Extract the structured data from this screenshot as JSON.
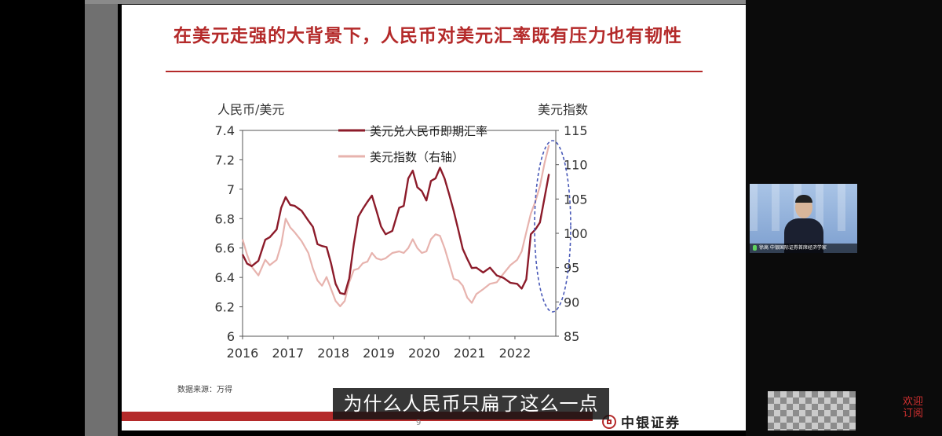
{
  "slide": {
    "title": "在美元走强的大背景下，人民币对美元汇率既有压力也有韧性",
    "source": "数据来源：万得",
    "page_number": "9",
    "logo_text": "中银证券",
    "logo_icon": "boc-logo-icon"
  },
  "subtitle": "为什么人民币只扁了这么一点",
  "webcam": {
    "name_label": "徐高  中银国际证券首席经济学家"
  },
  "subscribe_label": "欢迎订阅",
  "colors": {
    "brand_red": "#b42a2a",
    "series_cny": "#8c1b2a",
    "series_dxy": "#e7b3ae",
    "ellipse": "#4a5ab8"
  },
  "chart_data": {
    "type": "line",
    "left_axis_label": "人民币/美元",
    "right_axis_label": "美元指数",
    "x_ticks": [
      "2016",
      "2017",
      "2018",
      "2019",
      "2020",
      "2021",
      "2022"
    ],
    "xlim": [
      2016,
      2022.9
    ],
    "ylim_left": [
      6,
      7.4
    ],
    "yticks_left": [
      "6",
      "6.2",
      "6.4",
      "6.6",
      "6.8",
      "7",
      "7.2",
      "7.4"
    ],
    "ylim_right": [
      85,
      115
    ],
    "yticks_right": [
      "85",
      "90",
      "95",
      "100",
      "105",
      "110",
      "115"
    ],
    "series": [
      {
        "name": "美元兑人民币即期汇率",
        "axis": "left",
        "x": [
          2016.0,
          2016.1,
          2016.2,
          2016.35,
          2016.5,
          2016.6,
          2016.75,
          2016.85,
          2016.95,
          2017.05,
          2017.15,
          2017.3,
          2017.45,
          2017.55,
          2017.65,
          2017.75,
          2017.85,
          2017.95,
          2018.05,
          2018.15,
          2018.25,
          2018.35,
          2018.45,
          2018.55,
          2018.65,
          2018.75,
          2018.85,
          2018.95,
          2019.05,
          2019.15,
          2019.3,
          2019.45,
          2019.55,
          2019.65,
          2019.75,
          2019.85,
          2019.95,
          2020.05,
          2020.15,
          2020.25,
          2020.35,
          2020.45,
          2020.55,
          2020.65,
          2020.75,
          2020.85,
          2020.95,
          2021.05,
          2021.15,
          2021.3,
          2021.45,
          2021.6,
          2021.75,
          2021.9,
          2022.05,
          2022.15,
          2022.25,
          2022.35,
          2022.45,
          2022.55,
          2022.65,
          2022.75
        ],
        "values": [
          6.55,
          6.5,
          6.47,
          6.52,
          6.65,
          6.68,
          6.72,
          6.88,
          6.94,
          6.9,
          6.88,
          6.86,
          6.78,
          6.75,
          6.62,
          6.62,
          6.6,
          6.5,
          6.35,
          6.3,
          6.28,
          6.4,
          6.62,
          6.82,
          6.86,
          6.92,
          6.95,
          6.86,
          6.74,
          6.7,
          6.71,
          6.88,
          6.88,
          7.08,
          7.12,
          7.02,
          6.98,
          6.93,
          7.05,
          7.08,
          7.14,
          7.08,
          6.96,
          6.86,
          6.72,
          6.6,
          6.52,
          6.47,
          6.46,
          6.44,
          6.46,
          6.42,
          6.39,
          6.37,
          6.35,
          6.33,
          6.38,
          6.7,
          6.72,
          6.78,
          6.93,
          7.11
        ]
      },
      {
        "name": "美元指数（右轴）",
        "axis": "right",
        "x": [
          2016.0,
          2016.1,
          2016.2,
          2016.35,
          2016.5,
          2016.6,
          2016.75,
          2016.85,
          2016.95,
          2017.05,
          2017.15,
          2017.3,
          2017.45,
          2017.55,
          2017.65,
          2017.75,
          2017.85,
          2017.95,
          2018.05,
          2018.15,
          2018.25,
          2018.35,
          2018.45,
          2018.55,
          2018.65,
          2018.75,
          2018.85,
          2018.95,
          2019.05,
          2019.15,
          2019.3,
          2019.45,
          2019.55,
          2019.65,
          2019.75,
          2019.85,
          2019.95,
          2020.05,
          2020.15,
          2020.25,
          2020.35,
          2020.45,
          2020.55,
          2020.65,
          2020.75,
          2020.85,
          2020.95,
          2021.05,
          2021.15,
          2021.3,
          2021.45,
          2021.6,
          2021.75,
          2021.9,
          2022.05,
          2022.15,
          2022.25,
          2022.35,
          2022.45,
          2022.55,
          2022.65,
          2022.75
        ],
        "values": [
          99,
          97,
          95,
          94,
          96,
          95.5,
          96,
          98.5,
          102,
          101,
          100,
          99,
          97,
          95,
          93,
          92.5,
          93.5,
          92,
          90,
          89.5,
          90,
          93,
          94.5,
          95,
          95.5,
          96,
          97,
          96.5,
          96,
          96.5,
          97,
          97.5,
          97,
          98,
          99,
          98,
          97,
          97.5,
          99,
          100,
          99.5,
          98,
          95.5,
          93.5,
          93,
          92.5,
          90.5,
          90,
          91,
          92,
          92.5,
          93,
          94,
          95.5,
          96,
          97.5,
          100,
          103,
          104.5,
          107,
          110,
          113
        ]
      }
    ],
    "annotation": "dashed ellipse around 2022 rise"
  }
}
